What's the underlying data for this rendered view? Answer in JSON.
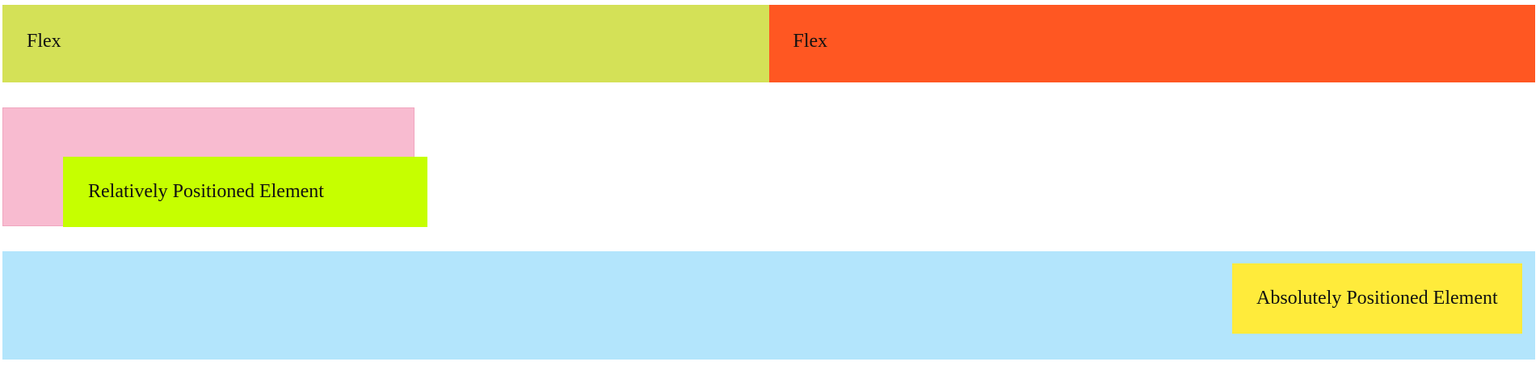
{
  "flex_section": {
    "items": [
      {
        "label": "Flex",
        "color": "#d4e157"
      },
      {
        "label": "Flex",
        "color": "#ff5722"
      }
    ]
  },
  "relative_section": {
    "container_color": "#f8bbd0",
    "element": {
      "label": "Relatively Positioned Element",
      "color": "#c6ff00"
    }
  },
  "absolute_section": {
    "container_color": "#b3e5fc",
    "element": {
      "label": "Absolutely Positioned Element",
      "color": "#ffeb3b"
    }
  }
}
